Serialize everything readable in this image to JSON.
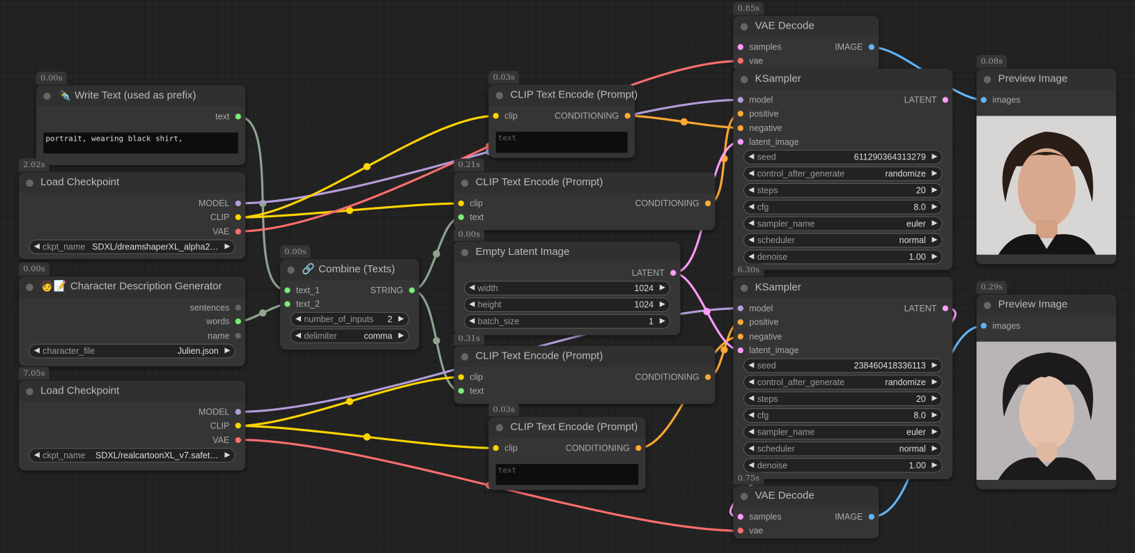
{
  "type_colors": {
    "MODEL": "#b39ddb",
    "CLIP": "#ffd500",
    "VAE": "#ff6e6e",
    "CONDITIONING": "#ffa931",
    "LATENT": "#ff9cf9",
    "IMAGE": "#64b5f6",
    "STRING": "#8fa58f",
    "STRING_DOT": "#77ee77",
    "UNLINKED": "#666"
  },
  "nodes": [
    {
      "title": "Write Text (used as prefix)",
      "icon": "✒️",
      "time": "0.00s",
      "inputs": [],
      "outputs": [
        {
          "name": "text",
          "type": "STRING"
        }
      ],
      "widgets": [],
      "textarea": {
        "value": "portrait, wearing black shirt,"
      }
    },
    {
      "title": "Load Checkpoint",
      "time": "2.02s",
      "inputs": [],
      "outputs": [
        {
          "name": "MODEL",
          "type": "MODEL"
        },
        {
          "name": "CLIP",
          "type": "CLIP"
        },
        {
          "name": "VAE",
          "type": "VAE"
        }
      ],
      "widgets": [
        {
          "name": "ckpt_name",
          "value": "SDXL/dreamshaperXL_alpha2…"
        }
      ]
    },
    {
      "title": "Character Description Generator",
      "icon": "🧑📝",
      "time": "0.00s",
      "inputs": [],
      "outputs": [
        {
          "name": "sentences",
          "type": "UNLINKED"
        },
        {
          "name": "words",
          "type": "STRING"
        },
        {
          "name": "name",
          "type": "UNLINKED"
        }
      ],
      "widgets": [
        {
          "name": "character_file",
          "value": "Julien.json"
        }
      ]
    },
    {
      "title": "Load Checkpoint",
      "time": "7.05s",
      "inputs": [],
      "outputs": [
        {
          "name": "MODEL",
          "type": "MODEL"
        },
        {
          "name": "CLIP",
          "type": "CLIP"
        },
        {
          "name": "VAE",
          "type": "VAE"
        }
      ],
      "widgets": [
        {
          "name": "ckpt_name",
          "value": "SDXL/realcartoonXL_v7.safet…"
        }
      ]
    },
    {
      "title": "Combine (Texts)",
      "icon": "🔗",
      "time": "0.00s",
      "inputs": [
        {
          "name": "text_1",
          "type": "STRING"
        },
        {
          "name": "text_2",
          "type": "STRING"
        }
      ],
      "outputs": [
        {
          "name": "STRING",
          "type": "STRING"
        }
      ],
      "widgets": [
        {
          "name": "number_of_inputs",
          "value": "2"
        },
        {
          "name": "delimiter",
          "value": "comma"
        }
      ]
    },
    {
      "title": "CLIP Text Encode (Prompt)",
      "time": "0.03s",
      "inputs": [
        {
          "name": "clip",
          "type": "CLIP"
        }
      ],
      "outputs": [
        {
          "name": "CONDITIONING",
          "type": "CONDITIONING"
        }
      ],
      "widgets": [],
      "textarea": {
        "placeholder": "text"
      }
    },
    {
      "title": "CLIP Text Encode (Prompt)",
      "time": "0.21s",
      "inputs": [
        {
          "name": "clip",
          "type": "CLIP"
        },
        {
          "name": "text",
          "type": "STRING"
        }
      ],
      "outputs": [
        {
          "name": "CONDITIONING",
          "type": "CONDITIONING"
        }
      ],
      "widgets": []
    },
    {
      "title": "Empty Latent Image",
      "time": "0.00s",
      "inputs": [],
      "outputs": [
        {
          "name": "LATENT",
          "type": "LATENT"
        }
      ],
      "widgets": [
        {
          "name": "width",
          "value": "1024"
        },
        {
          "name": "height",
          "value": "1024"
        },
        {
          "name": "batch_size",
          "value": "1"
        }
      ]
    },
    {
      "title": "CLIP Text Encode (Prompt)",
      "time": "0.31s",
      "inputs": [
        {
          "name": "clip",
          "type": "CLIP"
        },
        {
          "name": "text",
          "type": "STRING"
        }
      ],
      "outputs": [
        {
          "name": "CONDITIONING",
          "type": "CONDITIONING"
        }
      ],
      "widgets": []
    },
    {
      "title": "CLIP Text Encode (Prompt)",
      "time": "0.03s",
      "inputs": [
        {
          "name": "clip",
          "type": "CLIP"
        }
      ],
      "outputs": [
        {
          "name": "CONDITIONING",
          "type": "CONDITIONING"
        }
      ],
      "widgets": [],
      "textarea": {
        "placeholder": "text"
      }
    },
    {
      "title": "VAE Decode",
      "time": "0.85s",
      "inputs": [
        {
          "name": "samples",
          "type": "LATENT"
        },
        {
          "name": "vae",
          "type": "VAE"
        }
      ],
      "outputs": [
        {
          "name": "IMAGE",
          "type": "IMAGE"
        }
      ],
      "widgets": []
    },
    {
      "title": "KSampler",
      "inputs": [
        {
          "name": "model",
          "type": "MODEL"
        },
        {
          "name": "positive",
          "type": "CONDITIONING"
        },
        {
          "name": "negative",
          "type": "CONDITIONING"
        },
        {
          "name": "latent_image",
          "type": "LATENT"
        }
      ],
      "outputs": [
        {
          "name": "LATENT",
          "type": "LATENT"
        }
      ],
      "widgets": [
        {
          "name": "seed",
          "value": "611290364313279"
        },
        {
          "name": "control_after_generate",
          "value": "randomize"
        },
        {
          "name": "steps",
          "value": "20"
        },
        {
          "name": "cfg",
          "value": "8.0"
        },
        {
          "name": "sampler_name",
          "value": "euler"
        },
        {
          "name": "scheduler",
          "value": "normal"
        },
        {
          "name": "denoise",
          "value": "1.00"
        }
      ]
    },
    {
      "title": "Preview Image",
      "time": "0.08s",
      "inputs": [
        {
          "name": "images",
          "type": "IMAGE"
        }
      ],
      "outputs": [],
      "widgets": [],
      "preview": "photo-portrait"
    },
    {
      "title": "KSampler",
      "time": "6.30s",
      "inputs": [
        {
          "name": "model",
          "type": "MODEL"
        },
        {
          "name": "positive",
          "type": "CONDITIONING"
        },
        {
          "name": "negative",
          "type": "CONDITIONING"
        },
        {
          "name": "latent_image",
          "type": "LATENT"
        }
      ],
      "outputs": [
        {
          "name": "LATENT",
          "type": "LATENT"
        }
      ],
      "widgets": [
        {
          "name": "seed",
          "value": "238460418336113"
        },
        {
          "name": "control_after_generate",
          "value": "randomize"
        },
        {
          "name": "steps",
          "value": "20"
        },
        {
          "name": "cfg",
          "value": "8.0"
        },
        {
          "name": "sampler_name",
          "value": "euler"
        },
        {
          "name": "scheduler",
          "value": "normal"
        },
        {
          "name": "denoise",
          "value": "1.00"
        }
      ]
    },
    {
      "title": "Preview Image",
      "time": "0.29s",
      "inputs": [
        {
          "name": "images",
          "type": "IMAGE"
        }
      ],
      "outputs": [],
      "widgets": [],
      "preview": "cartoon-portrait"
    },
    {
      "title": "VAE Decode",
      "time": "0.75s",
      "inputs": [
        {
          "name": "samples",
          "type": "LATENT"
        },
        {
          "name": "vae",
          "type": "VAE"
        }
      ],
      "outputs": [
        {
          "name": "IMAGE",
          "type": "IMAGE"
        }
      ],
      "widgets": []
    }
  ]
}
